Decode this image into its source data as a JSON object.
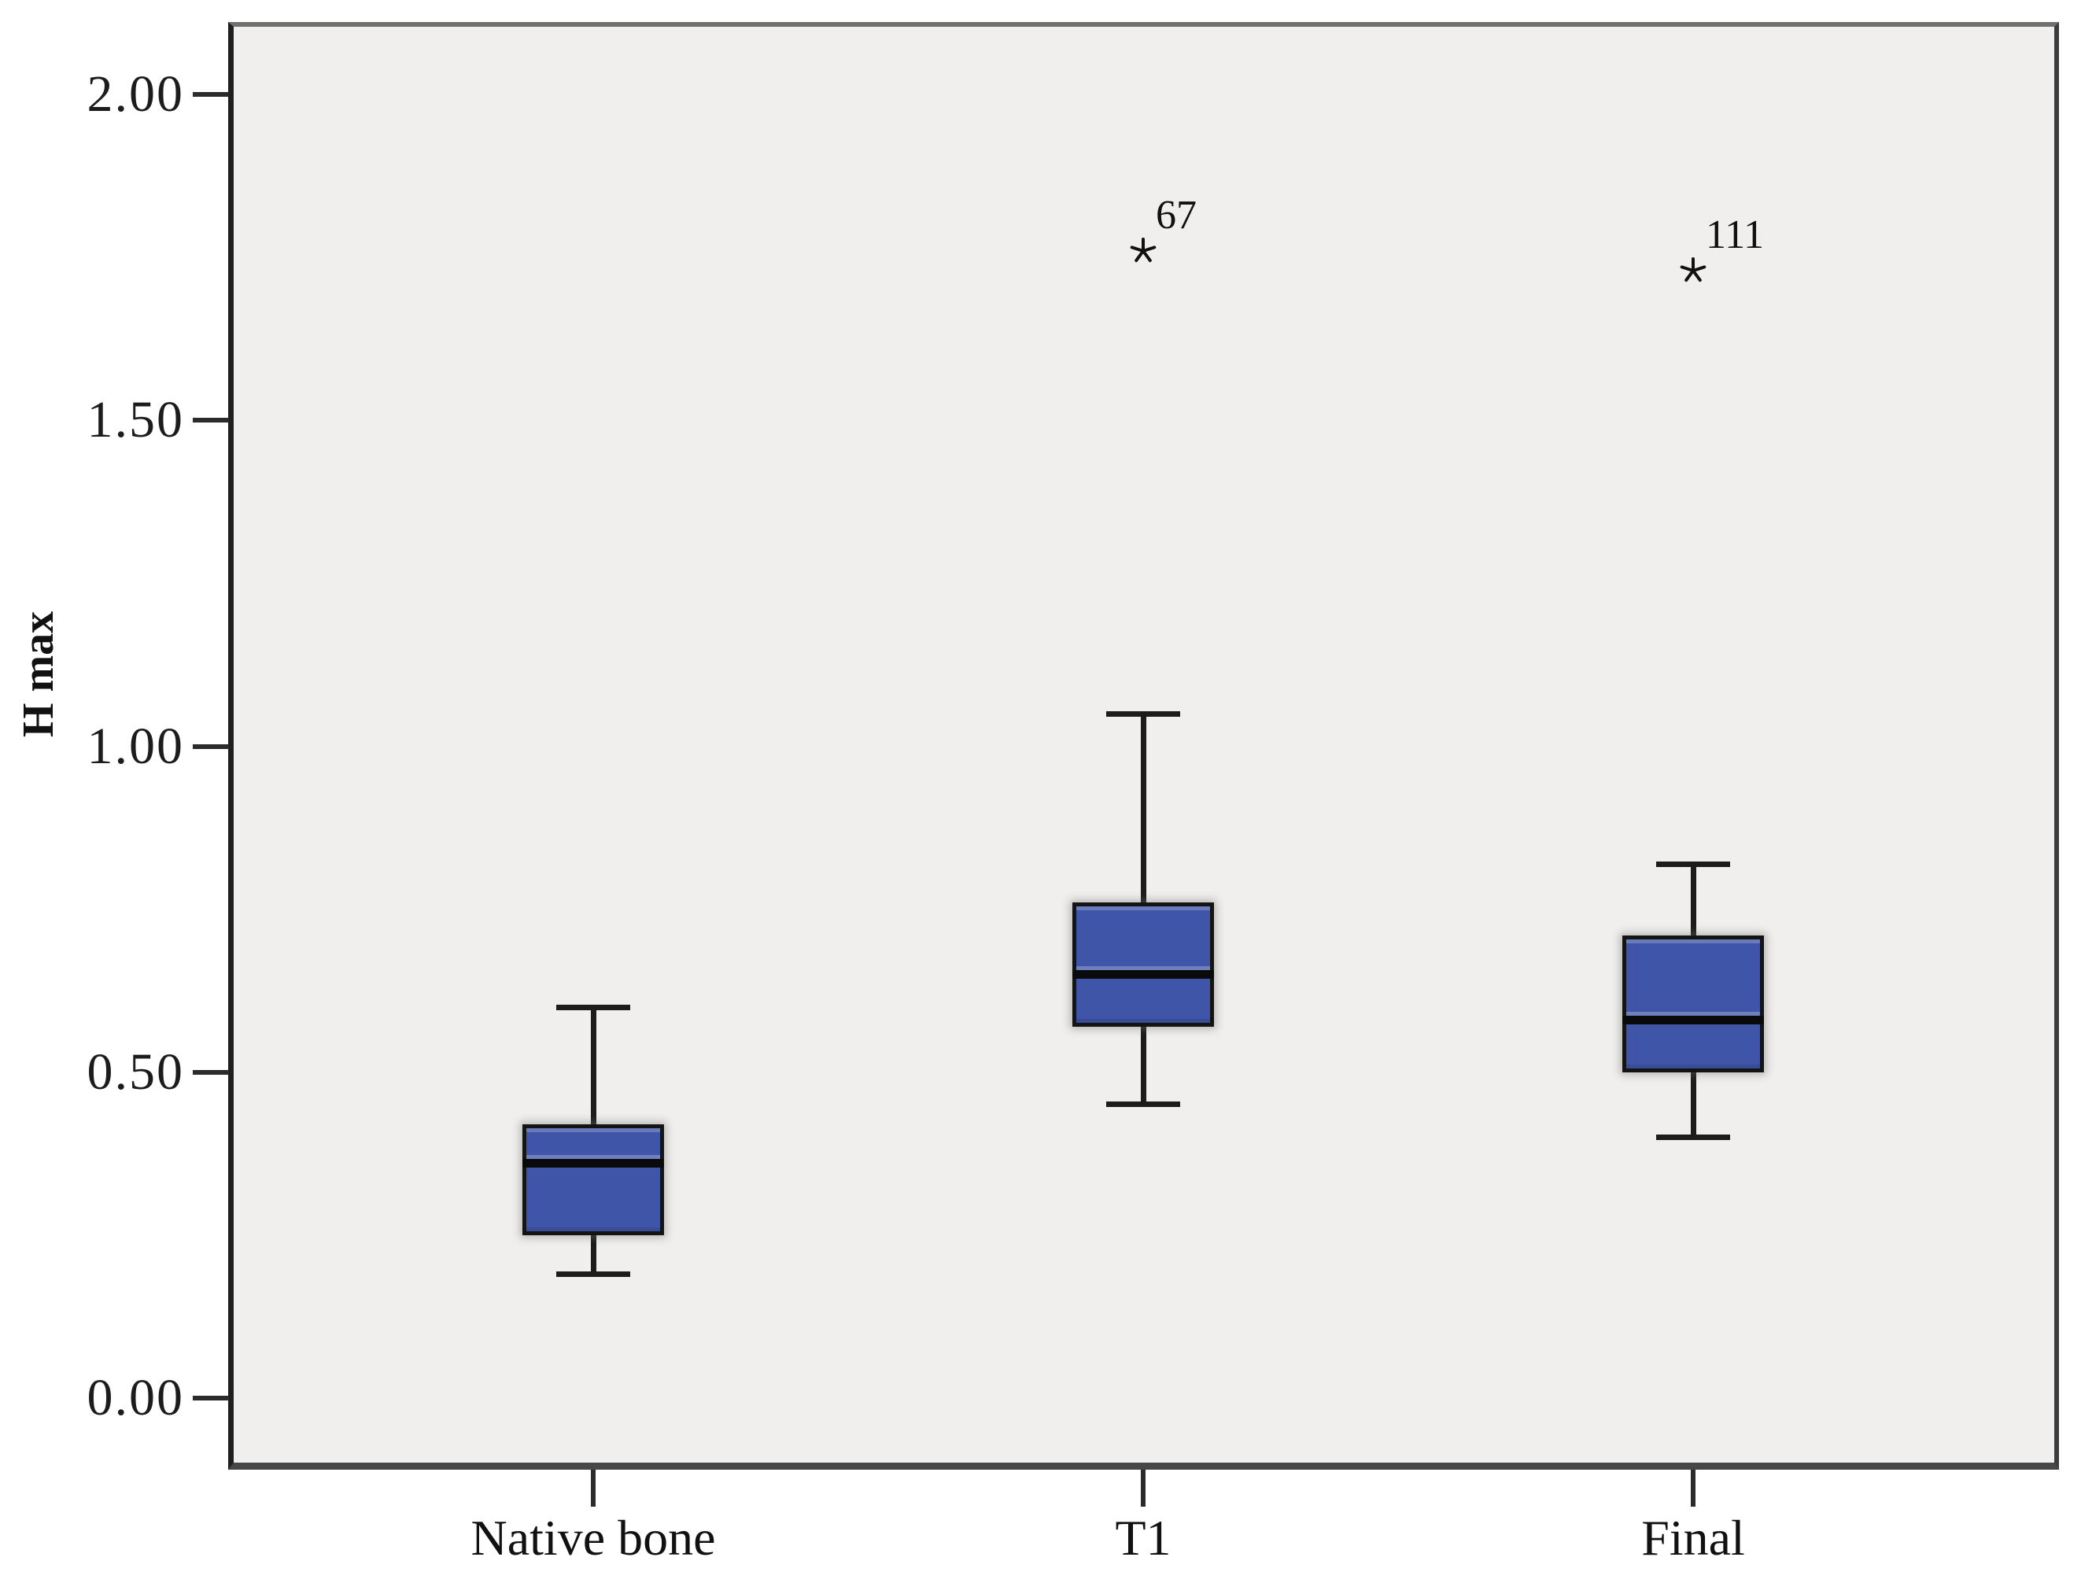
{
  "y_axis": {
    "title": "H max",
    "ticks": [
      {
        "value": 2.0,
        "label": "2.00"
      },
      {
        "value": 1.5,
        "label": "1.50"
      },
      {
        "value": 1.0,
        "label": "1.00"
      },
      {
        "value": 0.5,
        "label": "0.50"
      },
      {
        "value": 0.0,
        "label": "0.00"
      }
    ]
  },
  "x_axis": {
    "categories": [
      "Native bone",
      "T1",
      "Final"
    ]
  },
  "chart_data": {
    "type": "boxplot",
    "title": "",
    "xlabel": "",
    "ylabel": "H max",
    "ylim": [
      -0.11,
      2.11
    ],
    "grid": false,
    "legend_position": "none",
    "categories": [
      "Native bone",
      "T1",
      "Final"
    ],
    "series": [
      {
        "category": "Native bone",
        "whisker_min": 0.19,
        "q1": 0.25,
        "median": 0.36,
        "q3": 0.42,
        "whisker_max": 0.6,
        "outliers": []
      },
      {
        "category": "T1",
        "whisker_min": 0.45,
        "q1": 0.57,
        "median": 0.65,
        "q3": 0.76,
        "whisker_max": 1.05,
        "outliers": [
          {
            "value": 1.76,
            "label": "67",
            "marker": "star"
          }
        ]
      },
      {
        "category": "Final",
        "whisker_min": 0.4,
        "q1": 0.5,
        "median": 0.58,
        "q3": 0.71,
        "whisker_max": 0.82,
        "outliers": [
          {
            "value": 1.73,
            "label": "111",
            "marker": "star"
          }
        ]
      }
    ],
    "colors": {
      "box_fill": "#3F56A8",
      "box_border": "#141414",
      "median": "#0a0a0a",
      "whisker": "#1c1c1c",
      "outlier_marker": "#111111",
      "plot_background": "#F0EFED",
      "page_background": "#FFFFFF",
      "tick_text": "#1c1c1c"
    }
  }
}
